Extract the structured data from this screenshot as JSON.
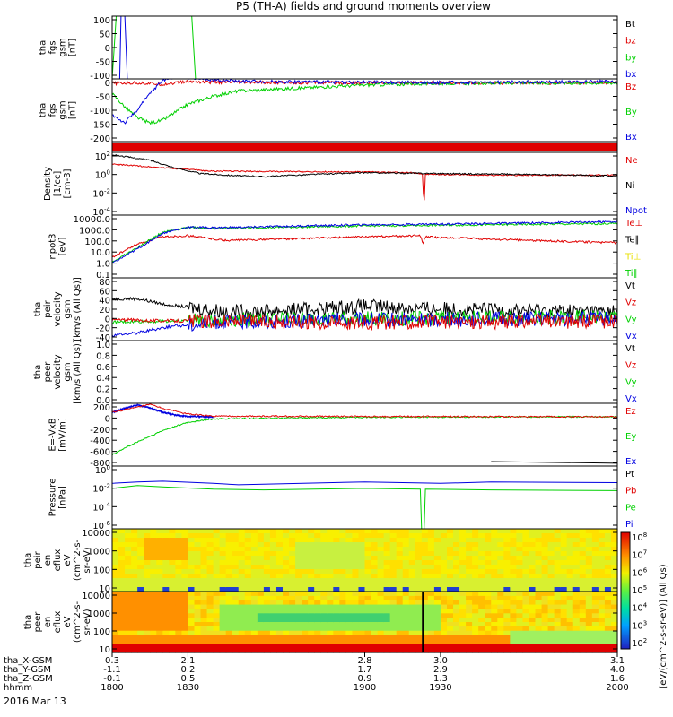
{
  "title": "P5 (TH-A) fields and ground moments overview",
  "date_label": "2016 Mar 13",
  "colors": {
    "black": "#000000",
    "red": "#e00000",
    "green": "#00d000",
    "blue": "#0000e0",
    "yellow": "#e8e000"
  },
  "chart_data": [
    {
      "id": "fgs_zoom",
      "type": "line",
      "ylabel": [
        "tha",
        "fgs",
        "gsm",
        "[nT]"
      ],
      "yticks": [
        "100",
        "50",
        "0",
        "-50",
        "-100"
      ],
      "ylim": [
        -100,
        100
      ],
      "legend": [
        {
          "label": "Bt",
          "color": "black"
        },
        {
          "label": "bz",
          "color": "red"
        },
        {
          "label": "by",
          "color": "green"
        },
        {
          "label": "bx",
          "color": "blue"
        }
      ],
      "series": [
        {
          "name": "by",
          "color": "green",
          "x": [
            1800,
            1801.6,
            1803,
            1831.5,
            1833
          ],
          "y": [
            -100,
            100,
            100,
            100,
            -100
          ]
        },
        {
          "name": "bx",
          "color": "blue",
          "x": [
            1803,
            1803.5,
            1805,
            1806
          ],
          "y": [
            -100,
            100,
            100,
            -100
          ]
        }
      ]
    },
    {
      "id": "fgs",
      "type": "line",
      "ylabel": [
        "tha",
        "fgs",
        "gsm",
        "[nT]"
      ],
      "yticks": [
        "0",
        "-50",
        "-100",
        "-150",
        "-200"
      ],
      "ylim": [
        -220,
        15
      ],
      "legend": [
        {
          "label": "Bz",
          "color": "red"
        },
        {
          "label": "By",
          "color": "green"
        },
        {
          "label": "Bx",
          "color": "blue"
        }
      ],
      "series": [
        {
          "name": "Bz",
          "color": "red",
          "x": [
            1800,
            1810,
            1820,
            1830,
            1840,
            1900,
            2000
          ],
          "y": [
            -2,
            0,
            -5,
            5,
            2,
            0,
            0
          ]
        },
        {
          "name": "By",
          "color": "green",
          "x": [
            1800,
            1805,
            1810,
            1815,
            1820,
            1825,
            1830,
            1840,
            1850,
            1900,
            1930,
            2000
          ],
          "y": [
            -40,
            -90,
            -130,
            -150,
            -140,
            -110,
            -80,
            -50,
            -30,
            -8,
            -2,
            0
          ]
        },
        {
          "name": "Bx",
          "color": "blue",
          "x": [
            1800,
            1805,
            1810,
            1815,
            1820,
            1825,
            1830,
            1840,
            1850,
            1900,
            1930,
            2000
          ],
          "y": [
            -120,
            -150,
            -100,
            -40,
            10,
            25,
            20,
            12,
            6,
            2,
            1,
            5
          ]
        }
      ]
    },
    {
      "id": "density",
      "type": "line",
      "log": true,
      "ylabel": [
        "Density",
        "[1/cc]",
        "[cm-3]"
      ],
      "yticks": [
        "10^2",
        "10^0",
        "10^-2",
        "10^-4"
      ],
      "ylim": [
        -5.5,
        2.5
      ],
      "legend": [
        {
          "label": "Ne",
          "color": "red"
        },
        {
          "label": "Ni",
          "color": "black"
        },
        {
          "label": "Npot",
          "color": "blue"
        }
      ],
      "series": [
        {
          "name": "Ne",
          "color": "red",
          "x": [
            1800,
            1820,
            1840,
            1900,
            1920,
            1923,
            1923.4,
            1924,
            1950,
            2000
          ],
          "y": [
            1,
            0.55,
            0.1,
            0,
            -0.1,
            -0.3,
            -5.3,
            -0.3,
            -0.4,
            -0.4
          ]
        },
        {
          "name": "Ni",
          "color": "black",
          "x": [
            1800,
            1815,
            1825,
            1835,
            1845,
            1860,
            1880,
            1900,
            1930,
            1960,
            2000
          ],
          "y": [
            2.2,
            1.5,
            0.5,
            -0.2,
            -0.4,
            -0.6,
            -0.3,
            -0.1,
            -0.2,
            -0.3,
            -0.5
          ]
        }
      ]
    },
    {
      "id": "temp",
      "type": "line",
      "log": true,
      "ylabel": [
        "npot3",
        "[eV]"
      ],
      "yticks": [
        "10000.0",
        "1000.0",
        "100.0",
        "10.0",
        "1.0",
        "0.1"
      ],
      "ylim": [
        -1,
        4.2
      ],
      "legend": [
        {
          "label": "Te⊥",
          "color": "red"
        },
        {
          "label": "Te∥",
          "color": "black"
        },
        {
          "label": "Ti⊥",
          "color": "yellow"
        },
        {
          "label": "Ti∥",
          "color": "green"
        }
      ],
      "series": [
        {
          "name": "Te",
          "color": "red",
          "x": [
            1800,
            1810,
            1820,
            1830,
            1845,
            1900,
            1922,
            1923,
            1924,
            1950,
            2000
          ],
          "y": [
            0.7,
            1.8,
            2.4,
            2.5,
            2.1,
            2.4,
            2.5,
            1.8,
            2.4,
            2.2,
            1.9
          ]
        },
        {
          "name": "Ti",
          "color": "green",
          "x": [
            1800,
            1810,
            1820,
            1830,
            1840,
            1900,
            1950,
            2000
          ],
          "y": [
            0.3,
            1.5,
            2.8,
            3.2,
            3.1,
            3.3,
            3.4,
            3.5
          ]
        },
        {
          "name": "Tb",
          "color": "blue",
          "x": [
            1800,
            1810,
            1820,
            1830,
            1840,
            1900,
            1950,
            2000
          ],
          "y": [
            0.2,
            1.4,
            2.7,
            3.2,
            3.15,
            3.4,
            3.5,
            3.65
          ]
        }
      ]
    },
    {
      "id": "peir_v",
      "type": "line",
      "ylabel": [
        "tha",
        "peir",
        "velocity",
        "gsm",
        "[km/s (All Qs)]"
      ],
      "yticks": [
        "80",
        "60",
        "40",
        "20",
        "0",
        "-20",
        "-40"
      ],
      "ylim": [
        -40,
        80
      ],
      "legend": [
        {
          "label": "Vt",
          "color": "black"
        },
        {
          "label": "Vz",
          "color": "red"
        },
        {
          "label": "Vy",
          "color": "green"
        },
        {
          "label": "Vx",
          "color": "blue"
        }
      ],
      "series": [
        {
          "name": "Vt",
          "color": "black",
          "x": [
            1800,
            1810,
            1820,
            1840,
            1850,
            1900,
            1930,
            2000
          ],
          "y": [
            40,
            40,
            30,
            18,
            15,
            25,
            20,
            15
          ]
        },
        {
          "name": "Vy",
          "color": "green",
          "x": [
            1800,
            1820,
            1840,
            1900,
            2000
          ],
          "y": [
            -5,
            -3,
            0,
            2,
            5
          ]
        },
        {
          "name": "Vx",
          "color": "blue",
          "x": [
            1800,
            1810,
            1820,
            1830,
            1840,
            1900,
            2000
          ],
          "y": [
            -30,
            -25,
            -15,
            -10,
            -5,
            0,
            2
          ]
        },
        {
          "name": "Vz",
          "color": "red",
          "x": [
            1800,
            1820,
            1840,
            1900,
            2000
          ],
          "y": [
            0,
            -2,
            -3,
            -5,
            -3
          ]
        }
      ]
    },
    {
      "id": "peer_v",
      "type": "line",
      "ylabel": [
        "tha",
        "peer",
        "velocity",
        "gsm",
        "[km/s (All Qs)]"
      ],
      "yticks": [
        "1.0",
        "0.8",
        "0.6",
        "0.4",
        "0.2",
        "0.0"
      ],
      "ylim": [
        0,
        1
      ],
      "legend": [
        {
          "label": "Vt",
          "color": "black"
        },
        {
          "label": "Vz",
          "color": "red"
        },
        {
          "label": "Vy",
          "color": "green"
        },
        {
          "label": "Vx",
          "color": "blue"
        }
      ],
      "series": []
    },
    {
      "id": "efield",
      "type": "line",
      "ylabel": [
        "E=-VxB",
        "[mV/m]"
      ],
      "yticks": [
        "200",
        "0",
        "-200",
        "-400",
        "-600",
        "-800"
      ],
      "ylim": [
        -880,
        240
      ],
      "legend": [
        {
          "label": "Ez",
          "color": "red"
        },
        {
          "label": "Ey",
          "color": "green"
        },
        {
          "label": "Ex",
          "color": "blue"
        }
      ],
      "series": [
        {
          "name": "Ex",
          "color": "blue",
          "x": [
            1800,
            1805,
            1810,
            1815,
            1820,
            1825,
            1830,
            1840
          ],
          "y": [
            80,
            150,
            210,
            160,
            80,
            30,
            5,
            0
          ]
        },
        {
          "name": "Ey",
          "color": "green",
          "x": [
            1800,
            1805,
            1810,
            1815,
            1820,
            1825,
            1830,
            1840,
            1900,
            1950,
            2000
          ],
          "y": [
            -680,
            -560,
            -450,
            -350,
            -250,
            -170,
            -100,
            -40,
            -8,
            -2,
            0
          ]
        },
        {
          "name": "Ez",
          "color": "red",
          "x": [
            1800,
            1810,
            1815,
            1820,
            1830,
            1840,
            2000
          ],
          "y": [
            80,
            170,
            220,
            150,
            50,
            10,
            0
          ]
        },
        {
          "name": "Pt",
          "color": "black",
          "x": [
            1950,
            2000
          ],
          "y": [
            -800,
            -830
          ]
        }
      ]
    },
    {
      "id": "pressure",
      "type": "line",
      "log": true,
      "ylabel": [
        "Pressure",
        "[nPa]"
      ],
      "yticks": [
        "10^0",
        "10^-2",
        "10^-4",
        "10^-6"
      ],
      "ylim": [
        -7.5,
        1.2
      ],
      "legend": [
        {
          "label": "Pt",
          "color": "black"
        },
        {
          "label": "Pb",
          "color": "red"
        },
        {
          "label": "Pe",
          "color": "green"
        },
        {
          "label": "Pi",
          "color": "blue"
        }
      ],
      "series": [
        {
          "name": "Pi",
          "color": "blue",
          "x": [
            1800,
            1810,
            1820,
            1840,
            1850,
            1900,
            1930,
            1950,
            2000
          ],
          "y": [
            -1.2,
            -1.0,
            -0.9,
            -1.2,
            -1.4,
            -1.0,
            -1.2,
            -1.0,
            -1.1
          ]
        },
        {
          "name": "Pe",
          "color": "green",
          "x": [
            1800,
            1810,
            1820,
            1840,
            1860,
            1900,
            1922,
            1922.5,
            1923.5,
            1924,
            1950,
            2000
          ],
          "y": [
            -1.9,
            -1.5,
            -1.7,
            -2.0,
            -2.1,
            -1.9,
            -2.0,
            -7.5,
            -7.5,
            -2.0,
            -2.1,
            -2.2
          ]
        }
      ]
    },
    {
      "id": "peir_spec",
      "type": "heatmap",
      "ylabel": [
        "tha",
        "peir",
        "en",
        "eflux",
        "eV",
        "(cm^2-s-",
        "sr-eV)"
      ],
      "yticks": [
        "10000",
        "1000",
        "100",
        "10"
      ]
    },
    {
      "id": "peer_spec",
      "type": "heatmap",
      "ylabel": [
        "tha",
        "peer",
        "en",
        "eflux",
        "eV",
        "(cm^2-s-",
        "sr-eV)"
      ],
      "yticks": [
        "10000",
        "1000",
        "100",
        "10"
      ]
    }
  ],
  "colorbar": {
    "label": "[eV/(cm^2-s-sr-eV)] (All Qs)",
    "ticks": [
      "10^8",
      "10^7",
      "10^6",
      "10^5",
      "10^4",
      "10^3",
      "10^2"
    ]
  },
  "x_axis": {
    "row_labels": [
      "tha_X-GSM",
      "tha_Y-GSM",
      "tha_Z-GSM",
      "hhmm"
    ],
    "ticks": [
      {
        "t": 1800,
        "values": [
          "0.3",
          "-1.1",
          "-0.1",
          "1800"
        ]
      },
      {
        "t": 1830,
        "values": [
          "2.1",
          "0.2",
          "0.5",
          "1830"
        ]
      },
      {
        "t": 1900,
        "values": [
          "2.8",
          "1.7",
          "0.9",
          "1900"
        ]
      },
      {
        "t": 1930,
        "values": [
          "3.0",
          "2.9",
          "1.3",
          "1930"
        ]
      },
      {
        "t": 2000,
        "values": [
          "3.1",
          "4.0",
          "1.6",
          "2000"
        ]
      }
    ]
  }
}
